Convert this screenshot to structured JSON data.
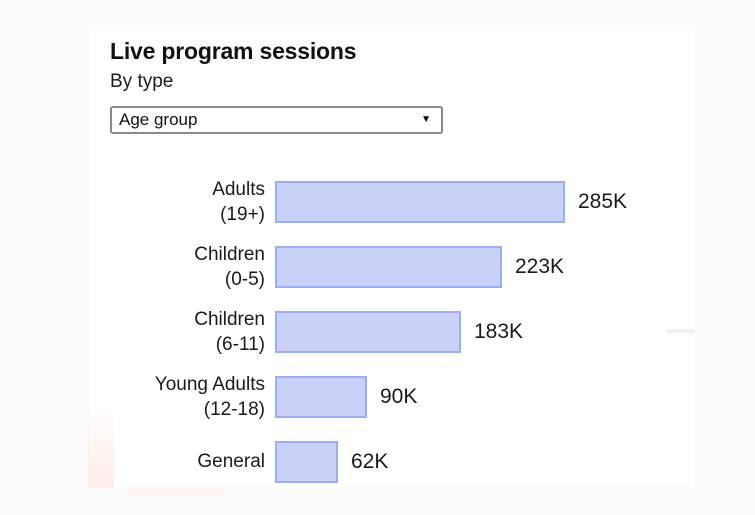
{
  "header": {
    "title": "Live program sessions",
    "subtitle": "By type"
  },
  "controls": {
    "type_dropdown": {
      "selected_value": "Age group",
      "arrow_icon": "▼"
    }
  },
  "chart_data": {
    "type": "bar",
    "orientation": "horizontal",
    "title": "Live program sessions",
    "subtitle": "By type",
    "categories": [
      "Adults (19+)",
      "Children (0-5)",
      "Children (6-11)",
      "Young Adults (12-18)",
      "General"
    ],
    "category_lines": [
      [
        "Adults",
        "(19+)"
      ],
      [
        "Children",
        "(0-5)"
      ],
      [
        "Children",
        "(6-11)"
      ],
      [
        "Young Adults",
        "(12-18)"
      ],
      [
        "General"
      ]
    ],
    "values_thousands": [
      285,
      223,
      183,
      90,
      62
    ],
    "value_labels": [
      "285K",
      "223K",
      "183K",
      "90K",
      "62K"
    ],
    "xlim": [
      0,
      285
    ],
    "grid": false,
    "legend": false,
    "colors": {
      "bar_fill": "#c9d1f9",
      "bar_border": "#9cadf2",
      "text": "#1a1a1a"
    }
  }
}
